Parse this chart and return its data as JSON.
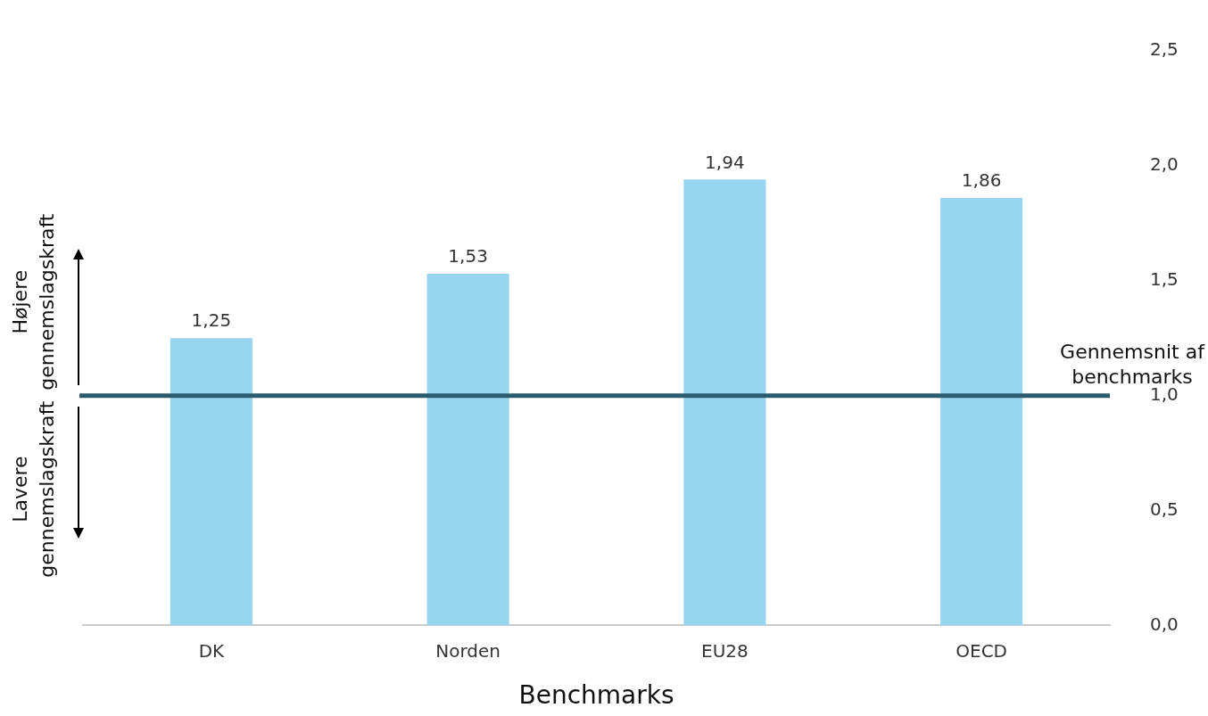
{
  "chart_data": {
    "type": "bar",
    "xlabel": "Benchmarks",
    "categories": [
      "DK",
      "Norden",
      "EU28",
      "OECD"
    ],
    "values": [
      1.25,
      1.53,
      1.94,
      1.86
    ],
    "value_labels": [
      "1,25",
      "1,53",
      "1,94",
      "1,86"
    ],
    "color": "#97d5f0",
    "ylim": [
      0,
      2.5
    ],
    "yticks": [
      {
        "value": 0,
        "label": "0,0"
      },
      {
        "value": 0.5,
        "label": "0,5"
      },
      {
        "value": 1,
        "label": "1,0"
      },
      {
        "value": 1.5,
        "label": "1,5"
      },
      {
        "value": 2,
        "label": "2,0"
      },
      {
        "value": 2.5,
        "label": "2,5"
      }
    ],
    "ref_lines": [
      {
        "axis": "y",
        "value": 1,
        "label": "Gennemsnit af benchmarks",
        "color": "#2b5b6e"
      }
    ],
    "annotations": [
      "Højere gennemslagskraft",
      "Lavere gennemslagskraft"
    ],
    "grid": false,
    "legend": false
  }
}
